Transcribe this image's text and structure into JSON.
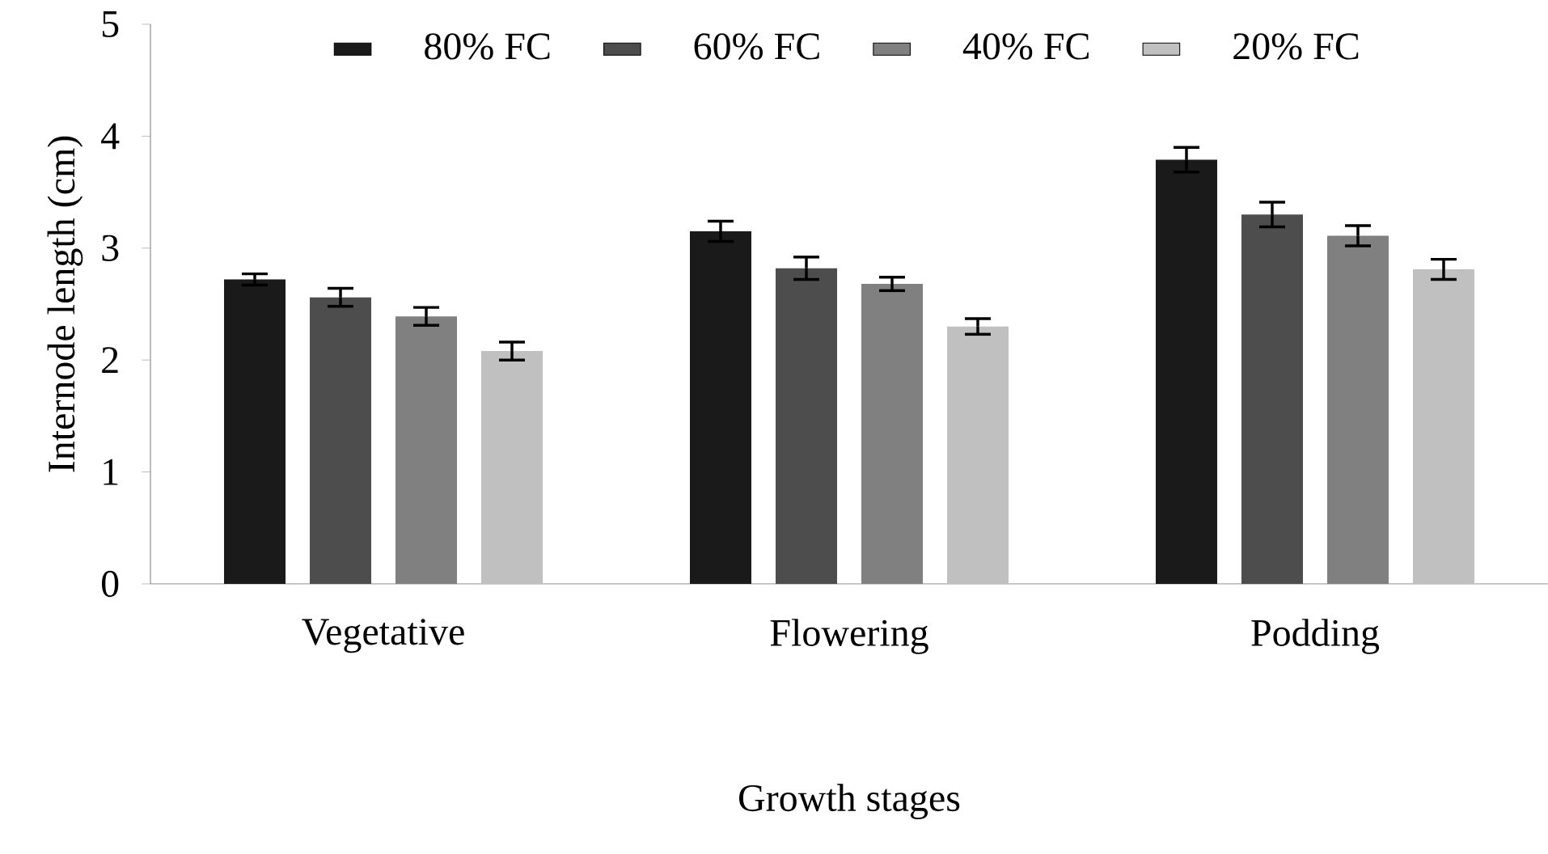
{
  "chart_data": {
    "type": "bar",
    "xlabel": "Growth stages",
    "ylabel": "Internode length (cm)",
    "categories": [
      "Vegetative",
      "Flowering",
      "Podding"
    ],
    "series": [
      {
        "name": "80% FC",
        "color": "#1a1a1a",
        "values": [
          2.72,
          3.15,
          3.79
        ],
        "errors": [
          0.05,
          0.09,
          0.11
        ]
      },
      {
        "name": "60% FC",
        "color": "#4d4d4d",
        "values": [
          2.56,
          2.82,
          3.3
        ],
        "errors": [
          0.08,
          0.1,
          0.11
        ]
      },
      {
        "name": "40% FC",
        "color": "#808080",
        "values": [
          2.39,
          2.68,
          3.11
        ],
        "errors": [
          0.08,
          0.06,
          0.09
        ]
      },
      {
        "name": "20% FC",
        "color": "#c0c0c0",
        "values": [
          2.08,
          2.3,
          2.81
        ],
        "errors": [
          0.08,
          0.07,
          0.09
        ]
      }
    ],
    "ylim": [
      0,
      5
    ],
    "yticks": [
      0,
      1,
      2,
      3,
      4,
      5
    ],
    "legend": "top",
    "grid": false
  }
}
